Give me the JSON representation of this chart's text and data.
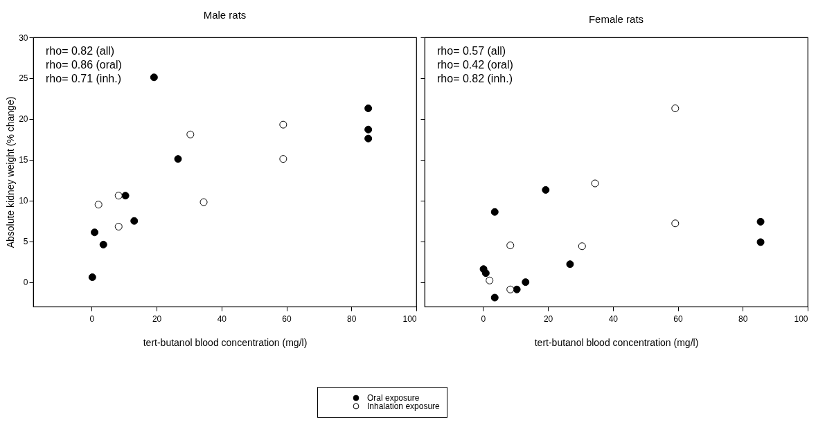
{
  "chart_data": [
    {
      "type": "scatter",
      "title": "Male rats",
      "xlabel": "tert-butanol blood concentration (mg/l)",
      "ylabel": "Absolute kidney weight (% change)",
      "xlim": [
        -18,
        100
      ],
      "xticks": [
        0,
        20,
        40,
        60,
        80,
        100
      ],
      "ylim": [
        -3,
        30
      ],
      "yticks": [
        0,
        5,
        10,
        15,
        20,
        25,
        30
      ],
      "marker": "circle",
      "grid": false,
      "legend": "bottom",
      "annotations": [
        "rho= 0.82 (all)",
        "rho= 0.86 (oral)",
        "rho= 0.71 (inh.)"
      ],
      "series": [
        {
          "name": "Oral exposure",
          "color": "#000000",
          "x": [
            0.2,
            0.9,
            3.6,
            10.4,
            13.1,
            19.2,
            26.6,
            85.2,
            85.2,
            85.2
          ],
          "values": [
            0.6,
            6.1,
            4.6,
            10.6,
            7.5,
            25.1,
            15.1,
            21.3,
            18.7,
            17.6
          ]
        },
        {
          "name": "Inhalation exposure",
          "color": "#ffffff",
          "x": [
            2.1,
            8.3,
            8.3,
            30.4,
            34.5,
            59.0,
            59.0
          ],
          "values": [
            9.5,
            10.6,
            6.8,
            18.1,
            9.8,
            19.3,
            15.1
          ]
        }
      ]
    },
    {
      "type": "scatter",
      "title": "Female rats",
      "xlabel": "tert-butanol blood concentration (mg/l)",
      "xlim": [
        -18,
        100
      ],
      "xticks": [
        0,
        20,
        40,
        60,
        80,
        100
      ],
      "ylim": [
        -3,
        30
      ],
      "yticks": [
        0,
        5,
        10,
        15,
        20,
        25,
        30
      ],
      "tick_labels": "x",
      "marker": "circle",
      "grid": false,
      "legend": "bottom",
      "annotations": [
        "rho= 0.57 (all)",
        "rho= 0.42 (oral)",
        "rho= 0.82 (inh.)"
      ],
      "series": [
        {
          "name": "Oral exposure",
          "color": "#000000",
          "x": [
            0.15,
            0.85,
            3.6,
            3.6,
            10.4,
            13.1,
            19.3,
            26.8,
            85.5,
            85.5
          ],
          "values": [
            1.6,
            1.1,
            8.6,
            -1.9,
            -0.9,
            0.0,
            11.3,
            2.2,
            7.4,
            4.9
          ]
        },
        {
          "name": "Inhalation exposure",
          "color": "#ffffff",
          "x": [
            2.0,
            8.4,
            8.4,
            30.5,
            34.5,
            59.2,
            59.2
          ],
          "values": [
            0.2,
            4.5,
            -0.9,
            4.4,
            12.1,
            21.3,
            7.2
          ]
        }
      ]
    }
  ]
}
